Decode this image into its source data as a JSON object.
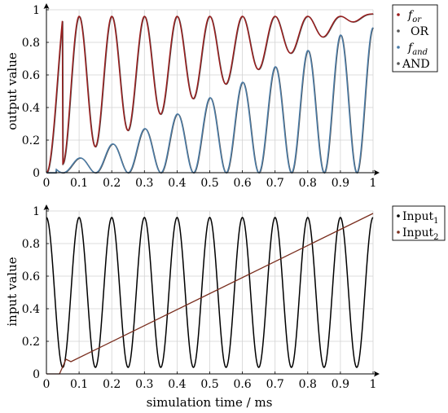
{
  "chart_data": [
    {
      "type": "line",
      "ylabel": "output value",
      "xlabel": "",
      "xlim": [
        0,
        1
      ],
      "ylim": [
        0,
        1
      ],
      "xticks": [
        "0",
        "0.1",
        "0.2",
        "0.3",
        "0.4",
        "0.5",
        "0.6",
        "0.7",
        "0.8",
        "0.9",
        "1"
      ],
      "yticks": [
        "0",
        "0.2",
        "0.4",
        "0.6",
        "0.8",
        "1"
      ],
      "grid": true,
      "legend_position": "outside-right-top",
      "series": [
        {
          "name": "f_or",
          "label_main": "f",
          "label_sub": "or",
          "color": "#9b1b1b"
        },
        {
          "name": "OR",
          "label_main": "OR",
          "label_sub": "",
          "color": "#555555"
        },
        {
          "name": "f_and",
          "label_main": "f",
          "label_sub": "and",
          "color": "#4a7ca8"
        },
        {
          "name": "AND",
          "label_main": "AND",
          "label_sub": "",
          "color": "#555555"
        }
      ],
      "envelope": {
        "or_min": [
          [
            0.0,
            0.0
          ],
          [
            0.1,
            0.11
          ],
          [
            0.2,
            0.21
          ],
          [
            0.3,
            0.31
          ],
          [
            0.4,
            0.41
          ],
          [
            0.5,
            0.5
          ],
          [
            0.6,
            0.59
          ],
          [
            0.7,
            0.68
          ],
          [
            0.8,
            0.79
          ],
          [
            0.9,
            0.88
          ],
          [
            1.0,
            0.97
          ]
        ],
        "and_max": [
          [
            0.05,
            0.06
          ],
          [
            0.15,
            0.12
          ],
          [
            0.25,
            0.23
          ],
          [
            0.35,
            0.31
          ],
          [
            0.45,
            0.41
          ],
          [
            0.55,
            0.51
          ],
          [
            0.65,
            0.6
          ],
          [
            0.75,
            0.7
          ],
          [
            0.85,
            0.8
          ],
          [
            0.95,
            0.89
          ]
        ],
        "peak_value": 0.96
      }
    },
    {
      "type": "line",
      "ylabel": "input value",
      "xlabel": "simulation time / ms",
      "xlim": [
        0,
        1
      ],
      "ylim": [
        0,
        1
      ],
      "xticks": [
        "0",
        "0.1",
        "0.2",
        "0.3",
        "0.4",
        "0.5",
        "0.6",
        "0.7",
        "0.8",
        "0.9",
        "1"
      ],
      "yticks": [
        "0",
        "0.2",
        "0.4",
        "0.6",
        "0.8",
        "1"
      ],
      "grid": true,
      "legend_position": "outside-right-top",
      "series": [
        {
          "name": "Input_1",
          "label_main": "Input",
          "label_sub": "1",
          "color": "#000000",
          "period": 0.1,
          "min": 0.04,
          "max": 0.96
        },
        {
          "name": "Input_2",
          "label_main": "Input",
          "label_sub": "2",
          "color": "#7a2e1e",
          "points": [
            [
              0,
              0
            ],
            [
              0.04,
              0
            ],
            [
              0.06,
              0.09
            ],
            [
              0.075,
              0.075
            ],
            [
              1.0,
              0.985
            ]
          ]
        }
      ]
    }
  ]
}
